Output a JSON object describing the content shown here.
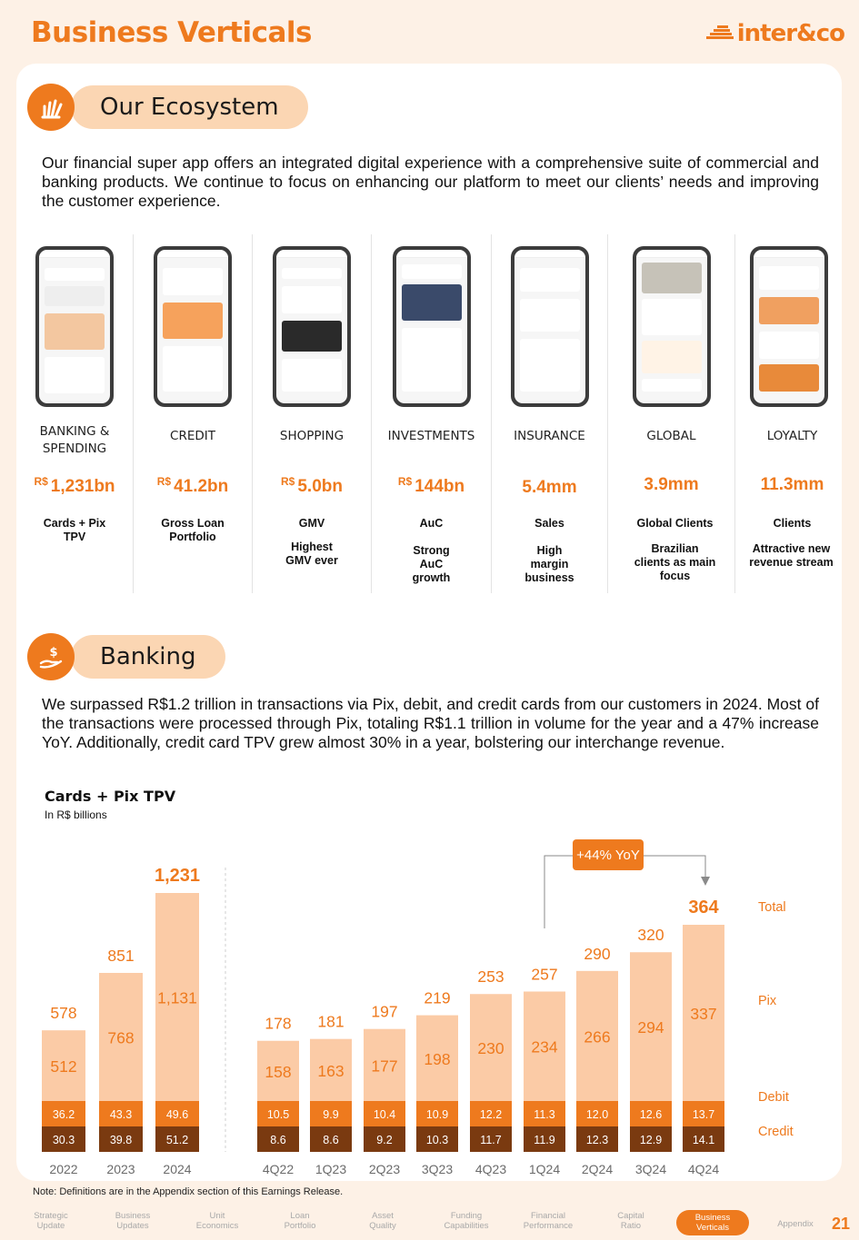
{
  "header": {
    "title": "Business Verticals",
    "brand": "inter&co"
  },
  "ecosystem": {
    "heading": "Our Ecosystem",
    "paragraph": "Our financial super app offers an integrated digital experience with a comprehensive suite of commercial and banking products. We continue to focus on enhancing our platform to meet our clients’ needs and improving the customer experience.",
    "verticals": [
      {
        "category": "BANKING & SPENDING",
        "currency": "R$",
        "metric": "1,231bn",
        "label": "Cards + Pix TPV",
        "note": ""
      },
      {
        "category": "CREDIT",
        "currency": "R$",
        "metric": "41.2bn",
        "label": "Gross Loan Portfolio",
        "note": ""
      },
      {
        "category": "SHOPPING",
        "currency": "R$",
        "metric": "5.0bn",
        "label": "GMV",
        "note": "Highest GMV ever"
      },
      {
        "category": "INVESTMENTS",
        "currency": "R$",
        "metric": "144bn",
        "label": "AuC",
        "note": "Strong AuC growth"
      },
      {
        "category": "INSURANCE",
        "currency": "",
        "metric": "5.4mm",
        "label": "Sales",
        "note": "High margin business"
      },
      {
        "category": "GLOBAL",
        "currency": "",
        "metric": "3.9mm",
        "label": "Global Clients",
        "note": "Brazilian clients as main focus"
      },
      {
        "category": "LOYALTY",
        "currency": "",
        "metric": "11.3mm",
        "label": "Clients",
        "note": "Attractive new revenue stream"
      }
    ]
  },
  "banking": {
    "heading": "Banking",
    "paragraph": "We surpassed R$1.2 trillion in transactions via Pix, debit, and credit cards from our customers in 2024. Most of the transactions were processed through Pix, totaling R$1.1 trillion in volume for the year and a 47% increase YoY. Additionally, credit card TPV grew almost 30% in a year, bolstering our interchange revenue."
  },
  "chart_data": {
    "type": "bar",
    "title": "Cards + Pix TPV",
    "subtitle": "In R$ billions",
    "stacked": true,
    "series_order": [
      "Credit",
      "Debit",
      "Pix"
    ],
    "colors": {
      "Credit": "#7a3a10",
      "Debit": "#ee7a1e",
      "Pix": "#fbcba6",
      "accent": "#ee7a1e"
    },
    "annual": {
      "categories": [
        "2022",
        "2023",
        "2024"
      ],
      "credit": [
        "30.3",
        "39.8",
        "51.2"
      ],
      "debit": [
        "36.2",
        "43.3",
        "49.6"
      ],
      "pix": [
        "512",
        "768",
        "1,131"
      ],
      "total": [
        "578",
        "851",
        "1,231"
      ],
      "highlight_last": true
    },
    "quarterly": {
      "categories": [
        "4Q22",
        "1Q23",
        "2Q23",
        "3Q23",
        "4Q23",
        "1Q24",
        "2Q24",
        "3Q24",
        "4Q24"
      ],
      "credit": [
        "8.6",
        "8.6",
        "9.2",
        "10.3",
        "11.7",
        "11.9",
        "12.3",
        "12.9",
        "14.1"
      ],
      "debit": [
        "10.5",
        "9.9",
        "10.4",
        "10.9",
        "12.2",
        "11.3",
        "12.0",
        "12.6",
        "13.7"
      ],
      "pix": [
        "158",
        "163",
        "177",
        "198",
        "230",
        "234",
        "266",
        "294",
        "337"
      ],
      "total": [
        "178",
        "181",
        "197",
        "219",
        "253",
        "257",
        "290",
        "320",
        "364"
      ],
      "highlight_last": true
    },
    "legend": {
      "total": "Total",
      "pix": "Pix",
      "debit": "Debit",
      "credit": "Credit"
    },
    "annotation": "+44% YoY"
  },
  "footer": {
    "note": "Note: Definitions are in the Appendix section of this Earnings Release.",
    "nav": [
      {
        "l1": "Strategic",
        "l2": "Update"
      },
      {
        "l1": "Business",
        "l2": "Updates"
      },
      {
        "l1": "Unit",
        "l2": "Economics"
      },
      {
        "l1": "Loan",
        "l2": "Portfolio"
      },
      {
        "l1": "Asset",
        "l2": "Quality"
      },
      {
        "l1": "Funding",
        "l2": "Capabilities"
      },
      {
        "l1": "Financial",
        "l2": "Performance"
      },
      {
        "l1": "Capital",
        "l2": "Ratio"
      },
      {
        "l1": "Business",
        "l2": "Verticals"
      },
      {
        "l1": "Appendix",
        "l2": ""
      }
    ],
    "page": "21"
  }
}
